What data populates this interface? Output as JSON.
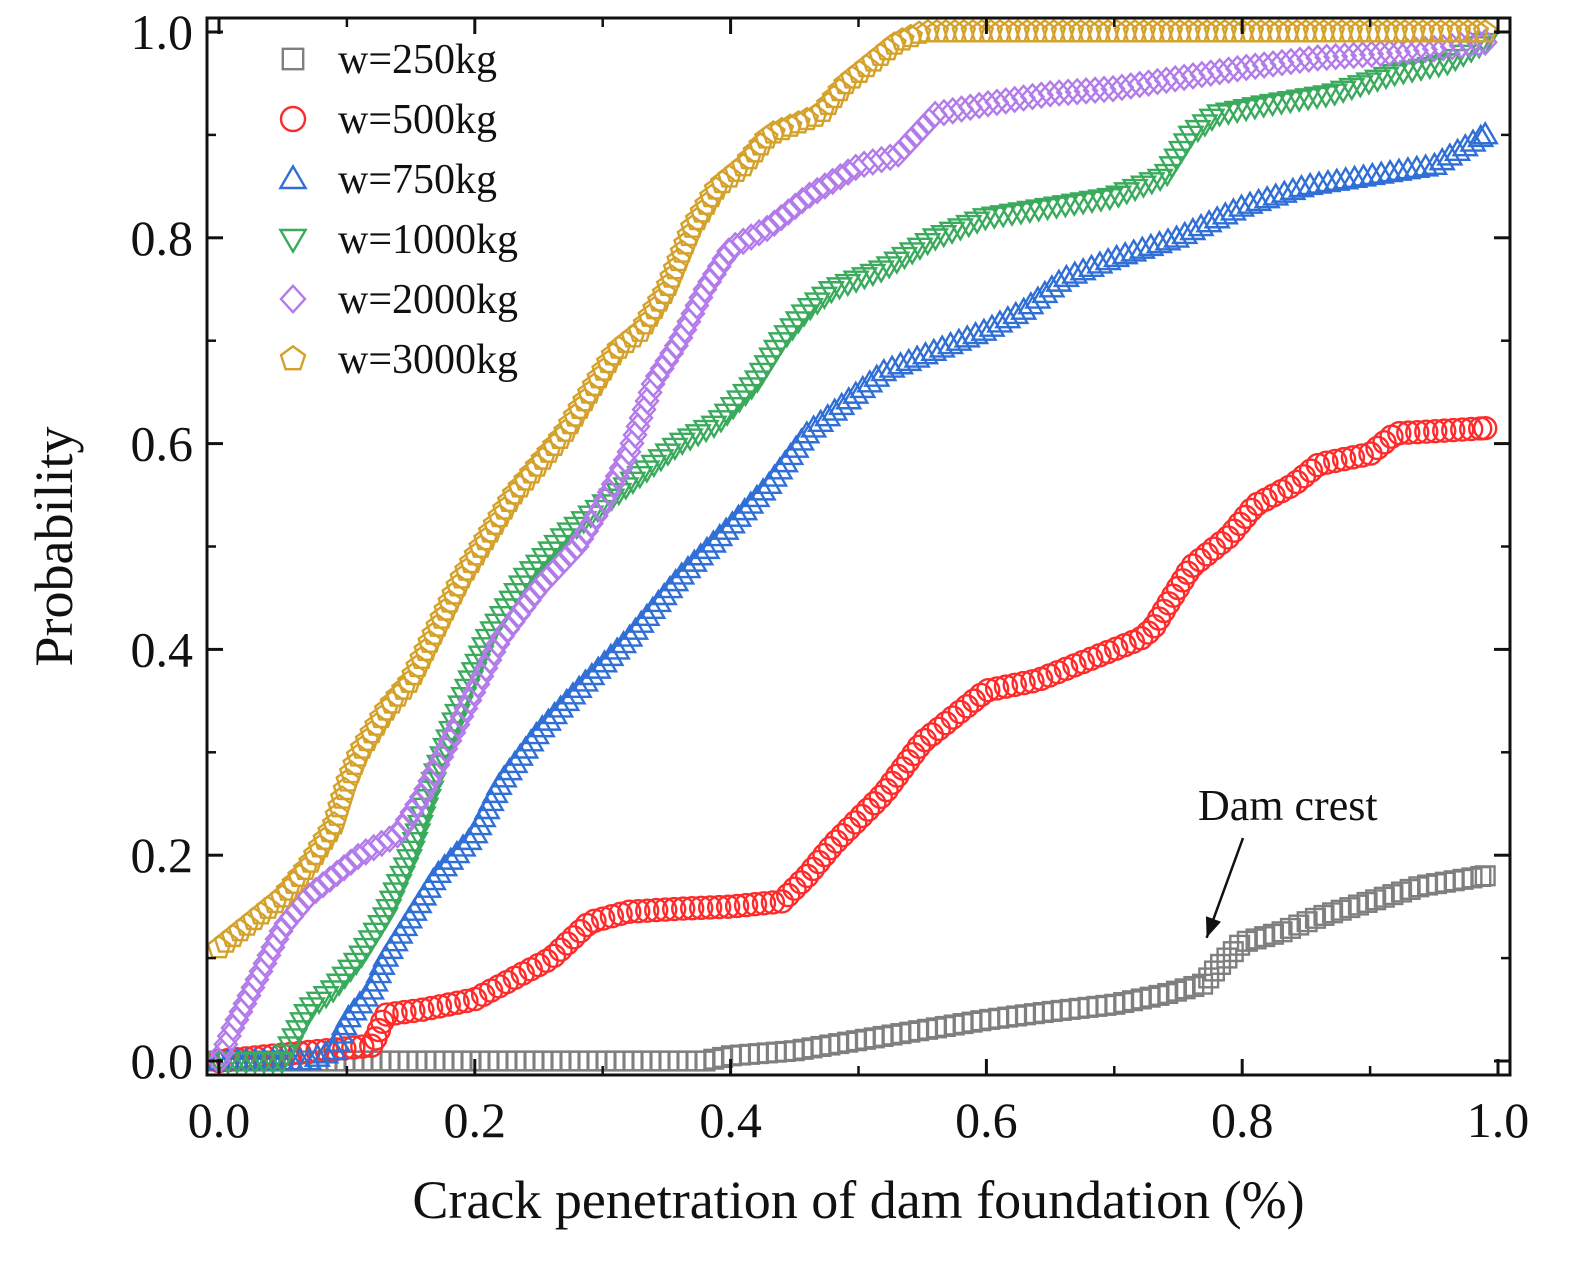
{
  "chart_data": {
    "type": "scatter",
    "xlabel": "Crack penetration of dam foundation (%)",
    "ylabel": "Probability",
    "xlim": [
      0.0,
      1.0
    ],
    "ylim": [
      0.0,
      1.0
    ],
    "xticks": [
      "0.0",
      "0.2",
      "0.4",
      "0.6",
      "0.8",
      "1.0"
    ],
    "yticks": [
      "0.0",
      "0.2",
      "0.4",
      "0.6",
      "0.8",
      "1.0"
    ],
    "grid": false,
    "legend_position": "top-left",
    "annotation": {
      "text": "Dam crest",
      "points_to": [
        0.78,
        0.11
      ]
    },
    "series": [
      {
        "name": "w=250kg",
        "marker": "square",
        "color": "#7f7f7f",
        "x": [
          0.0,
          0.1,
          0.2,
          0.3,
          0.38,
          0.4,
          0.45,
          0.5,
          0.55,
          0.6,
          0.65,
          0.7,
          0.74,
          0.77,
          0.78,
          0.8,
          0.83,
          0.86,
          0.9,
          0.94,
          0.99
        ],
        "y": [
          0.0,
          0.0,
          0.0,
          0.0,
          0.0,
          0.005,
          0.01,
          0.02,
          0.03,
          0.04,
          0.048,
          0.055,
          0.065,
          0.075,
          0.09,
          0.115,
          0.125,
          0.14,
          0.155,
          0.17,
          0.18
        ]
      },
      {
        "name": "w=500kg",
        "marker": "circle",
        "color": "#ff2a2a",
        "x": [
          0.0,
          0.08,
          0.12,
          0.13,
          0.16,
          0.2,
          0.23,
          0.26,
          0.29,
          0.32,
          0.36,
          0.4,
          0.44,
          0.46,
          0.48,
          0.52,
          0.55,
          0.58,
          0.6,
          0.64,
          0.68,
          0.72,
          0.73,
          0.74,
          0.76,
          0.79,
          0.81,
          0.84,
          0.86,
          0.9,
          0.92,
          0.95,
          0.99
        ],
        "y": [
          0.0,
          0.01,
          0.015,
          0.045,
          0.05,
          0.06,
          0.08,
          0.1,
          0.135,
          0.145,
          0.148,
          0.15,
          0.155,
          0.18,
          0.21,
          0.26,
          0.31,
          0.34,
          0.36,
          0.37,
          0.39,
          0.41,
          0.42,
          0.44,
          0.48,
          0.51,
          0.54,
          0.56,
          0.58,
          0.59,
          0.61,
          0.612,
          0.615
        ]
      },
      {
        "name": "w=750kg",
        "marker": "triangle-up",
        "color": "#2f6fd6",
        "x": [
          0.0,
          0.07,
          0.09,
          0.1,
          0.12,
          0.13,
          0.15,
          0.17,
          0.2,
          0.22,
          0.25,
          0.28,
          0.32,
          0.36,
          0.4,
          0.43,
          0.46,
          0.49,
          0.52,
          0.56,
          0.6,
          0.63,
          0.66,
          0.7,
          0.75,
          0.8,
          0.85,
          0.9,
          0.95,
          0.99
        ],
        "y": [
          0.0,
          0.0,
          0.01,
          0.04,
          0.07,
          0.1,
          0.14,
          0.18,
          0.22,
          0.27,
          0.32,
          0.36,
          0.41,
          0.47,
          0.52,
          0.56,
          0.61,
          0.64,
          0.67,
          0.69,
          0.71,
          0.73,
          0.76,
          0.78,
          0.8,
          0.83,
          0.85,
          0.86,
          0.87,
          0.9
        ]
      },
      {
        "name": "w=1000kg",
        "marker": "triangle-down",
        "color": "#3aaa5c",
        "x": [
          0.0,
          0.05,
          0.07,
          0.09,
          0.11,
          0.13,
          0.15,
          0.17,
          0.19,
          0.21,
          0.24,
          0.27,
          0.3,
          0.33,
          0.36,
          0.39,
          0.42,
          0.44,
          0.46,
          0.48,
          0.52,
          0.56,
          0.6,
          0.65,
          0.7,
          0.74,
          0.76,
          0.78,
          0.82,
          0.87,
          0.92,
          0.96,
          0.99
        ],
        "y": [
          0.0,
          0.0,
          0.05,
          0.07,
          0.1,
          0.14,
          0.2,
          0.28,
          0.35,
          0.41,
          0.47,
          0.51,
          0.54,
          0.57,
          0.6,
          0.62,
          0.66,
          0.7,
          0.73,
          0.75,
          0.77,
          0.8,
          0.82,
          0.83,
          0.84,
          0.86,
          0.9,
          0.92,
          0.93,
          0.94,
          0.96,
          0.97,
          0.99
        ]
      },
      {
        "name": "w=2000kg",
        "marker": "diamond",
        "color": "#b37bea",
        "x": [
          0.0,
          0.01,
          0.03,
          0.05,
          0.07,
          0.09,
          0.11,
          0.14,
          0.16,
          0.18,
          0.2,
          0.22,
          0.25,
          0.28,
          0.3,
          0.32,
          0.34,
          0.36,
          0.38,
          0.4,
          0.43,
          0.46,
          0.5,
          0.53,
          0.56,
          0.6,
          0.65,
          0.7,
          0.75,
          0.8,
          0.86,
          0.92,
          0.96,
          0.99
        ],
        "y": [
          0.0,
          0.03,
          0.08,
          0.13,
          0.16,
          0.18,
          0.2,
          0.22,
          0.26,
          0.31,
          0.36,
          0.41,
          0.46,
          0.5,
          0.54,
          0.59,
          0.66,
          0.7,
          0.75,
          0.79,
          0.81,
          0.84,
          0.87,
          0.88,
          0.92,
          0.93,
          0.94,
          0.945,
          0.955,
          0.965,
          0.975,
          0.98,
          0.985,
          0.99
        ]
      },
      {
        "name": "w=3000kg",
        "marker": "pentagon",
        "color": "#d4a22b",
        "x": [
          0.0,
          0.02,
          0.05,
          0.07,
          0.09,
          0.1,
          0.11,
          0.13,
          0.15,
          0.17,
          0.19,
          0.21,
          0.23,
          0.25,
          0.27,
          0.29,
          0.31,
          0.33,
          0.35,
          0.37,
          0.39,
          0.41,
          0.43,
          0.45,
          0.47,
          0.49,
          0.51,
          0.53,
          0.55,
          0.57,
          0.6,
          0.7,
          0.8,
          0.9,
          0.99
        ],
        "y": [
          0.11,
          0.13,
          0.16,
          0.19,
          0.23,
          0.27,
          0.3,
          0.34,
          0.37,
          0.42,
          0.47,
          0.51,
          0.55,
          0.58,
          0.61,
          0.65,
          0.69,
          0.71,
          0.75,
          0.81,
          0.85,
          0.87,
          0.9,
          0.91,
          0.92,
          0.95,
          0.97,
          0.99,
          1.0,
          1.0,
          1.0,
          1.0,
          1.0,
          1.0,
          1.0
        ]
      }
    ]
  }
}
